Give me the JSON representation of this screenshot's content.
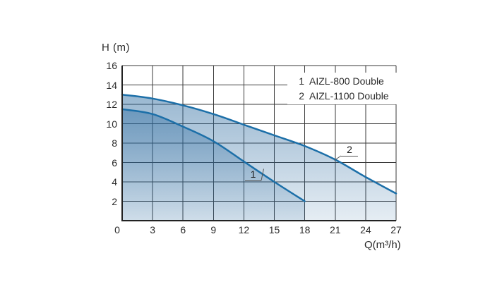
{
  "axis_labels": {
    "y": "H (m)",
    "x": "Q(m³/h)"
  },
  "legend": {
    "rows": [
      {
        "num": "1",
        "label": "AIZL-800 Double"
      },
      {
        "num": "2",
        "label": "AIZL-1100 Double"
      }
    ]
  },
  "chart_data": {
    "type": "area",
    "title": "",
    "xlabel": "Q(m³/h)",
    "ylabel": "H (m)",
    "xlim": [
      0,
      27
    ],
    "ylim": [
      0,
      16
    ],
    "x_ticks": [
      0,
      3,
      6,
      9,
      12,
      15,
      18,
      21,
      24,
      27
    ],
    "y_ticks": [
      0,
      2,
      4,
      6,
      8,
      10,
      12,
      14,
      16
    ],
    "grid": true,
    "legend_position": "top-right",
    "series": [
      {
        "name": "AIZL-800 Double",
        "curve_label": "1",
        "x": [
          0,
          3,
          6,
          9,
          12,
          15,
          18
        ],
        "y": [
          11.5,
          11.0,
          9.7,
          8.2,
          6.1,
          4.0,
          2.0
        ]
      },
      {
        "name": "AIZL-1100 Double",
        "curve_label": "2",
        "x": [
          0,
          3,
          6,
          9,
          12,
          15,
          18,
          21,
          24,
          27
        ],
        "y": [
          13.0,
          12.6,
          11.9,
          11.0,
          9.9,
          8.8,
          7.7,
          6.3,
          4.5,
          2.8
        ]
      }
    ],
    "colors": {
      "curve_stroke": "#1c6fa8",
      "fill_base": "#2b6a9f",
      "grid_line": "#3a3a3a",
      "axis_line": "#222222",
      "axis_text": "#2a2a2a"
    }
  }
}
